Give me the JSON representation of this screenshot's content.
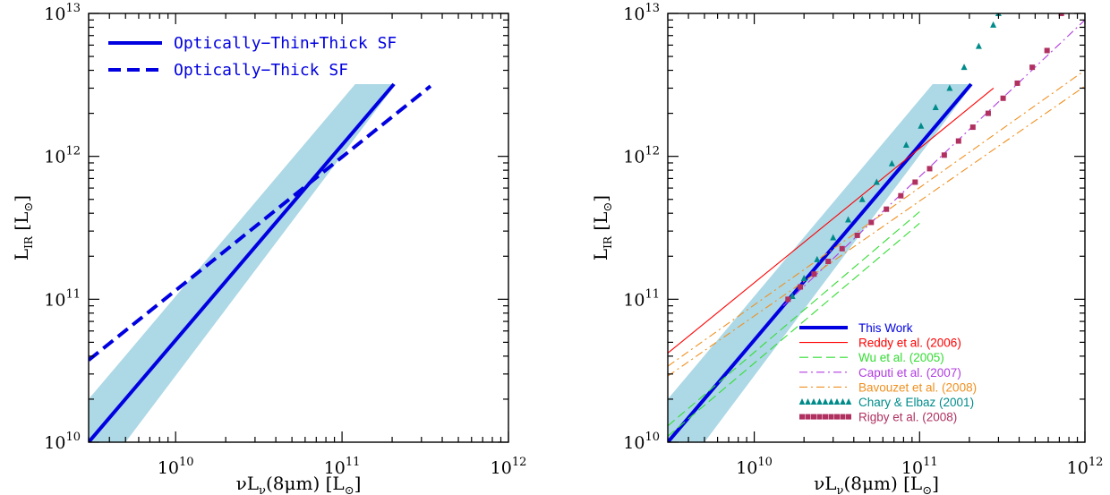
{
  "chart_data": [
    {
      "type": "line",
      "xscale": "log",
      "yscale": "log",
      "xlim": [
        3000000000.0,
        1000000000000.0
      ],
      "ylim": [
        10000000000.0,
        10000000000000.0
      ],
      "x_ticks": [
        {
          "value": 10000000000.0,
          "base": "10",
          "exp": "10"
        },
        {
          "value": 100000000000.0,
          "base": "10",
          "exp": "11"
        },
        {
          "value": 1000000000000.0,
          "base": "10",
          "exp": "12"
        }
      ],
      "y_ticks": [
        {
          "value": 10000000000.0,
          "base": "10",
          "exp": "10"
        },
        {
          "value": 100000000000.0,
          "base": "10",
          "exp": "11"
        },
        {
          "value": 1000000000000.0,
          "base": "10",
          "exp": "12"
        },
        {
          "value": 10000000000000.0,
          "base": "10",
          "exp": "13"
        }
      ],
      "xlabel": {
        "nu": "ν",
        "L": "L",
        "sub": "ν",
        "rest": "(8μm)  [L",
        "sun": "⊙",
        "close": "]"
      },
      "ylabel": {
        "L": "L",
        "sub": "IR",
        "rest": " [L",
        "sun": "⊙",
        "close": "]"
      },
      "legend_position": "top-left",
      "band": {
        "color": "#add8e6",
        "x": [
          3000000000.0,
          120000000000.0,
          210000000000.0,
          210000000000.0,
          5000000000.0,
          3000000000.0
        ],
        "y": [
          20000000000.0,
          3200000000000.0,
          3200000000000.0,
          3200000000000.0,
          10000000000.0,
          10000000000.0
        ]
      },
      "series": [
        {
          "name": "Optically−Thin+Thick SF",
          "color": "#0000e0",
          "dash": "solid",
          "x": [
            3000000000.0,
            205000000000.0
          ],
          "y": [
            10000000000.0,
            3200000000000.0
          ]
        },
        {
          "name": "Optically−Thick SF",
          "color": "#0000e0",
          "dash": "dashed",
          "x": [
            3000000000.0,
            340000000000.0
          ],
          "y": [
            37500000000.0,
            3100000000000.0
          ]
        }
      ]
    },
    {
      "type": "line",
      "xscale": "log",
      "yscale": "log",
      "xlim": [
        3000000000.0,
        1000000000000.0
      ],
      "ylim": [
        10000000000.0,
        10000000000000.0
      ],
      "x_ticks": [
        {
          "value": 10000000000.0,
          "base": "10",
          "exp": "10"
        },
        {
          "value": 100000000000.0,
          "base": "10",
          "exp": "11"
        },
        {
          "value": 1000000000000.0,
          "base": "10",
          "exp": "12"
        }
      ],
      "y_ticks": [
        {
          "value": 10000000000.0,
          "base": "10",
          "exp": "10"
        },
        {
          "value": 100000000000.0,
          "base": "10",
          "exp": "11"
        },
        {
          "value": 1000000000000.0,
          "base": "10",
          "exp": "12"
        },
        {
          "value": 10000000000000.0,
          "base": "10",
          "exp": "13"
        }
      ],
      "xlabel": {
        "nu": "ν",
        "L": "L",
        "sub": "ν",
        "rest": "(8μm)  [L",
        "sun": "⊙",
        "close": "]"
      },
      "ylabel": {
        "L": "L",
        "sub": "IR",
        "rest": " [L",
        "sun": "⊙",
        "close": "]"
      },
      "legend_position": "bottom-right",
      "band": {
        "color": "#add8e6",
        "x": [
          3000000000.0,
          120000000000.0,
          210000000000.0,
          210000000000.0,
          5000000000.0,
          3000000000.0
        ],
        "y": [
          20000000000.0,
          3200000000000.0,
          3200000000000.0,
          3200000000000.0,
          10000000000.0,
          10000000000.0
        ]
      },
      "series": [
        {
          "name": "This Work",
          "color": "#0000e0",
          "dash": "solid",
          "thick": true,
          "x": [
            3000000000.0,
            205000000000.0
          ],
          "y": [
            10000000000.0,
            3200000000000.0
          ]
        },
        {
          "name": "Reddy et al. (2006)",
          "color": "#ff0000",
          "dash": "solid",
          "x": [
            3000000000.0,
            280000000000.0
          ],
          "y": [
            42000000000.0,
            3000000000000.0
          ]
        },
        {
          "name": "Wu et al. (2005)",
          "color": "#33dd33",
          "dash": "dashed",
          "x": [
            3000000000.0,
            100000000000.0
          ],
          "y": [
            13000000000.0,
            410000000000.0
          ],
          "x2": [
            3000000000.0,
            100000000000.0
          ],
          "y2": [
            11000000000.0,
            340000000000.0
          ]
        },
        {
          "name": "Caputi et al. (2007)",
          "color": "#b03de0",
          "dash": "dashdot",
          "x": [
            15000000000.0,
            1000000000000.0
          ],
          "y": [
            90000000000.0,
            9000000000000.0
          ]
        },
        {
          "name": "Bavouzet et al. (2008)",
          "color": "#f09020",
          "dash": "dashdot",
          "x": [
            3000000000.0,
            1000000000000.0
          ],
          "y": [
            34000000000.0,
            4000000000000.0
          ],
          "x2": [
            3000000000.0,
            1000000000000.0
          ],
          "y2": [
            29000000000.0,
            3100000000000.0
          ]
        },
        {
          "name": "Chary & Elbaz (2001)",
          "color": "#008b8b",
          "marker": "triangle",
          "x": [
            17000000000.0,
            20000000000.0,
            24000000000.0,
            30000000000.0,
            37000000000.0,
            45000000000.0,
            55000000000.0,
            68000000000.0,
            83000000000.0,
            102000000000.0,
            125000000000.0,
            152000000000.0,
            186000000000.0,
            228000000000.0,
            279000000000.0,
            300000000000.0
          ],
          "y": [
            105000000000.0,
            140000000000.0,
            190000000000.0,
            270000000000.0,
            360000000000.0,
            500000000000.0,
            660000000000.0,
            890000000000.0,
            1200000000000.0,
            1630000000000.0,
            2200000000000.0,
            3000000000000.0,
            4200000000000.0,
            5900000000000.0,
            8300000000000.0,
            10000000000000.0
          ]
        },
        {
          "name": "Rigby et al. (2008)",
          "color": "#b03060",
          "marker": "square",
          "x": [
            16000000000.0,
            19000000000.0,
            23000000000.0,
            28000000000.0,
            34000000000.0,
            42000000000.0,
            51000000000.0,
            63000000000.0,
            77000000000.0,
            94000000000.0,
            115000000000.0,
            141000000000.0,
            172000000000.0,
            210000000000.0,
            260000000000.0,
            320000000000.0,
            390000000000.0,
            480000000000.0,
            590000000000.0,
            720000000000.0
          ],
          "y": [
            100000000000.0,
            122000000000.0,
            150000000000.0,
            184000000000.0,
            226000000000.0,
            280000000000.0,
            345000000000.0,
            427000000000.0,
            530000000000.0,
            660000000000.0,
            820000000000.0,
            1020000000000.0,
            1280000000000.0,
            1600000000000.0,
            2000000000000.0,
            2550000000000.0,
            3250000000000.0,
            4200000000000.0,
            5500000000000.0,
            10000000000000.0
          ]
        }
      ]
    }
  ]
}
